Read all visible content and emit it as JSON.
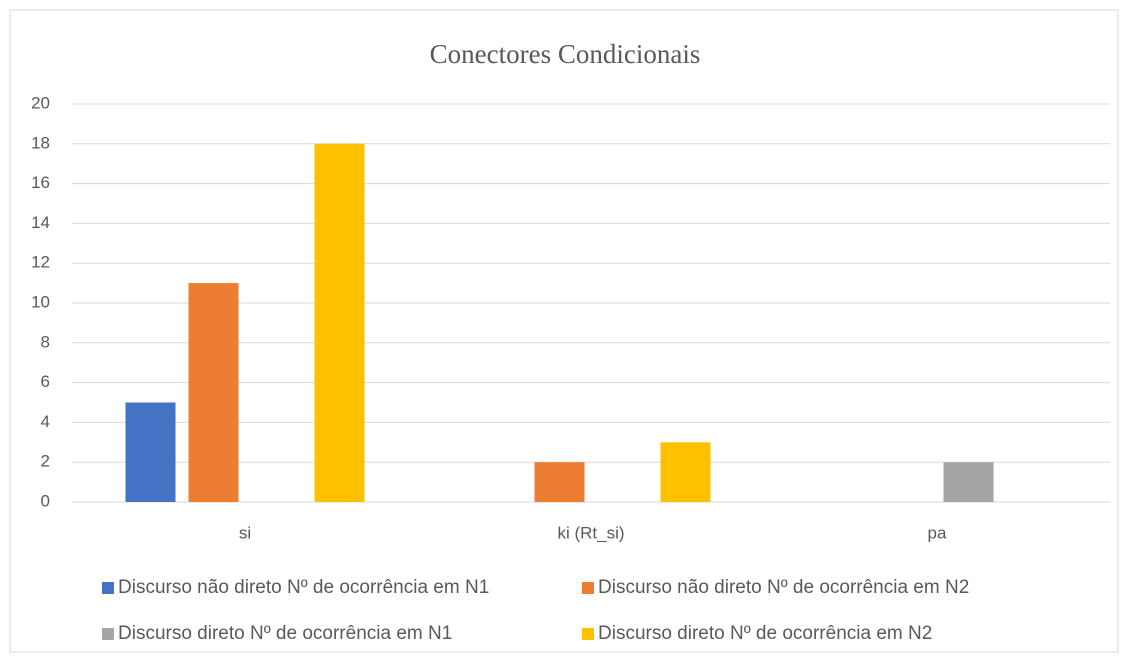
{
  "chart_data": {
    "type": "bar",
    "title": "Conectores Condicionais",
    "categories": [
      "si",
      "ki (Rt_si)",
      "pa"
    ],
    "series": [
      {
        "name": "Discurso não direto Nº de ocorrência em N1",
        "color": "#4472c4",
        "values": [
          5,
          0,
          0
        ]
      },
      {
        "name": "Discurso não direto Nº de ocorrência em N2",
        "color": "#ed7d31",
        "values": [
          11,
          2,
          0
        ]
      },
      {
        "name": "Discurso direto Nº de ocorrência em N1",
        "color": "#a5a5a5",
        "values": [
          0,
          0,
          2
        ]
      },
      {
        "name": "Discurso direto Nº de ocorrência em N2",
        "color": "#ffc000",
        "values": [
          18,
          3,
          0
        ]
      }
    ],
    "ylim": [
      0,
      20
    ],
    "yticks": [
      0,
      2,
      4,
      6,
      8,
      10,
      12,
      14,
      16,
      18,
      20
    ],
    "grid": true,
    "legend": "bottom"
  }
}
